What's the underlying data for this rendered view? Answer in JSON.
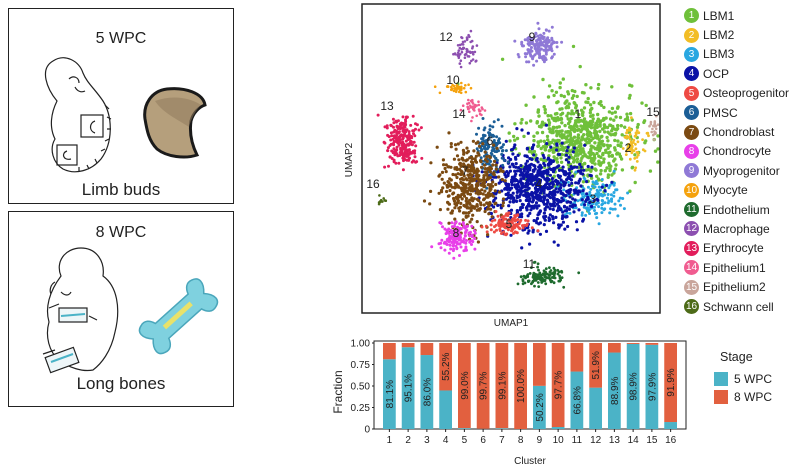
{
  "panels": {
    "top": {
      "title": "5 WPC",
      "caption": "Limb buds"
    },
    "bottom": {
      "title": "8 WPC",
      "caption": "Long bones"
    }
  },
  "umap": {
    "xlabel": "UMAP1",
    "ylabel": "UMAP2"
  },
  "legend": [
    {
      "num": "1",
      "label": "LBM1",
      "color": "#6fc03a"
    },
    {
      "num": "2",
      "label": "LBM2",
      "color": "#f2bd25"
    },
    {
      "num": "3",
      "label": "LBM3",
      "color": "#29a7e1"
    },
    {
      "num": "4",
      "label": "OCP",
      "color": "#0a12a6"
    },
    {
      "num": "5",
      "label": "Osteoprogenitor",
      "color": "#ee4a43"
    },
    {
      "num": "6",
      "label": "PMSC",
      "color": "#1b5e96"
    },
    {
      "num": "7",
      "label": "Chondroblast",
      "color": "#7b4a12"
    },
    {
      "num": "8",
      "label": "Chondrocyte",
      "color": "#e83fe9"
    },
    {
      "num": "9",
      "label": "Myoprogenitor",
      "color": "#8f79d6"
    },
    {
      "num": "10",
      "label": "Myocyte",
      "color": "#f5a20d"
    },
    {
      "num": "11",
      "label": "Endothelium",
      "color": "#1e6b2e"
    },
    {
      "num": "12",
      "label": "Macrophage",
      "color": "#8c4fb0"
    },
    {
      "num": "13",
      "label": "Erythrocyte",
      "color": "#e21d5b"
    },
    {
      "num": "14",
      "label": "Epithelium1",
      "color": "#f05c90"
    },
    {
      "num": "15",
      "label": "Epithelium2",
      "color": "#c9a59b"
    },
    {
      "num": "16",
      "label": "Schwann cell",
      "color": "#4d6b18"
    }
  ],
  "chart_data": {
    "type": "bar",
    "stacked": true,
    "xlabel": "Cluster",
    "ylabel": "Fraction",
    "ylim": [
      0,
      1
    ],
    "yticks": [
      "0",
      "0.25",
      "0.50",
      "0.75",
      "1.00"
    ],
    "categories": [
      "1",
      "2",
      "3",
      "4",
      "5",
      "6",
      "7",
      "8",
      "9",
      "10",
      "11",
      "12",
      "13",
      "14",
      "15",
      "16"
    ],
    "legend_title": "Stage",
    "series": [
      {
        "name": "5 WPC",
        "color": "#4bb3c7",
        "values": [
          0.811,
          0.951,
          0.86,
          0.448,
          0.01,
          0.003,
          0.009,
          0.0,
          0.502,
          0.023,
          0.668,
          0.481,
          0.889,
          0.989,
          0.979,
          0.081
        ]
      },
      {
        "name": "8 WPC",
        "color": "#e2603f",
        "values": [
          0.189,
          0.049,
          0.14,
          0.552,
          0.99,
          0.997,
          0.991,
          1.0,
          0.498,
          0.977,
          0.332,
          0.519,
          0.111,
          0.011,
          0.021,
          0.919
        ]
      }
    ],
    "labels": [
      "81.1%",
      "95.1%",
      "86.0%",
      "55.2%",
      "99.0%",
      "99.7%",
      "99.1%",
      "100.0%",
      "50.2%",
      "97.7%",
      "66.8%",
      "51.9%",
      "88.9%",
      "98.9%",
      "97.9%",
      "91.9%"
    ],
    "label_series": [
      0,
      0,
      0,
      1,
      1,
      1,
      1,
      1,
      0,
      1,
      0,
      1,
      0,
      0,
      0,
      1
    ]
  }
}
